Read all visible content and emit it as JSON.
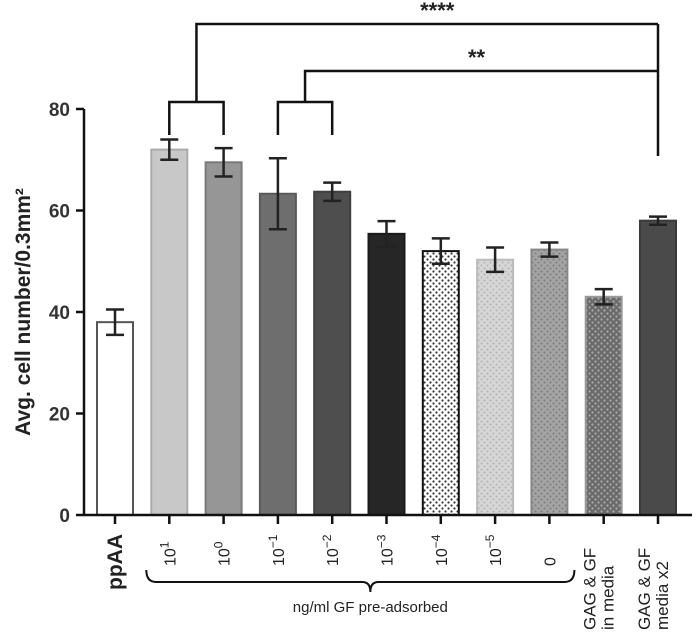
{
  "chart_data": {
    "type": "bar",
    "title": "",
    "xlabel": "",
    "ylabel": "Avg. cell number/0.3mm²",
    "ylim": [
      0,
      80
    ],
    "yticks": [
      0,
      20,
      40,
      60,
      80
    ],
    "grid": false,
    "categories": [
      {
        "label": "ppAA",
        "base": "ppAA",
        "sup": ""
      },
      {
        "label": "10^1",
        "base": "10",
        "sup": "1"
      },
      {
        "label": "10^0",
        "base": "10",
        "sup": "0"
      },
      {
        "label": "10^-1",
        "base": "10",
        "sup": "-1"
      },
      {
        "label": "10^-2",
        "base": "10",
        "sup": "-2"
      },
      {
        "label": "10^-3",
        "base": "10",
        "sup": "-3"
      },
      {
        "label": "10^-4",
        "base": "10",
        "sup": "-4"
      },
      {
        "label": "10^-5",
        "base": "10",
        "sup": "-5"
      },
      {
        "label": "0",
        "base": "0",
        "sup": ""
      },
      {
        "label": "GAG & GF in media",
        "lines": [
          "GAG & GF",
          "in media"
        ]
      },
      {
        "label": "GAG & GF media x2",
        "lines": [
          "GAG & GF",
          "media x2"
        ]
      }
    ],
    "values": [
      38,
      72,
      69.5,
      63.3,
      63.7,
      55.4,
      52,
      50.3,
      52.3,
      43,
      58
    ],
    "errors": [
      2.5,
      2,
      2.8,
      7,
      1.8,
      2.5,
      2.5,
      2.4,
      1.4,
      1.5,
      0.8
    ],
    "fills": [
      {
        "color": "#ffffff",
        "pattern": "none",
        "stroke": "#555555"
      },
      {
        "color": "#c8c8c8",
        "pattern": "none",
        "stroke": "#aaaaaa"
      },
      {
        "color": "#969696",
        "pattern": "none",
        "stroke": "#7a7a7a"
      },
      {
        "color": "#6e6e6e",
        "pattern": "none",
        "stroke": "#5a5a5a"
      },
      {
        "color": "#4e4e4e",
        "pattern": "none",
        "stroke": "#3e3e3e"
      },
      {
        "color": "#262626",
        "pattern": "none",
        "stroke": "#1a1a1a"
      },
      {
        "color": "#ffffff",
        "pattern": "dots-dark",
        "stroke": "#111111"
      },
      {
        "color": "#d8d8d8",
        "pattern": "dots-light",
        "stroke": "#bbbbbb"
      },
      {
        "color": "#a0a0a0",
        "pattern": "dots-mid",
        "stroke": "#888888"
      },
      {
        "color": "#8a8a8a",
        "pattern": "dots-grid",
        "stroke": "#999999"
      },
      {
        "color": "#4a4a4a",
        "pattern": "none",
        "stroke": "#3a3a3a"
      }
    ],
    "group_brace": {
      "label": "ng/ml GF pre-adsorbed",
      "from": 1,
      "to": 8
    },
    "significance": [
      {
        "label": "****",
        "from_group": [
          1,
          2
        ],
        "to": 10
      },
      {
        "label": "**",
        "from_group": [
          3,
          4
        ],
        "to": 10
      }
    ]
  }
}
